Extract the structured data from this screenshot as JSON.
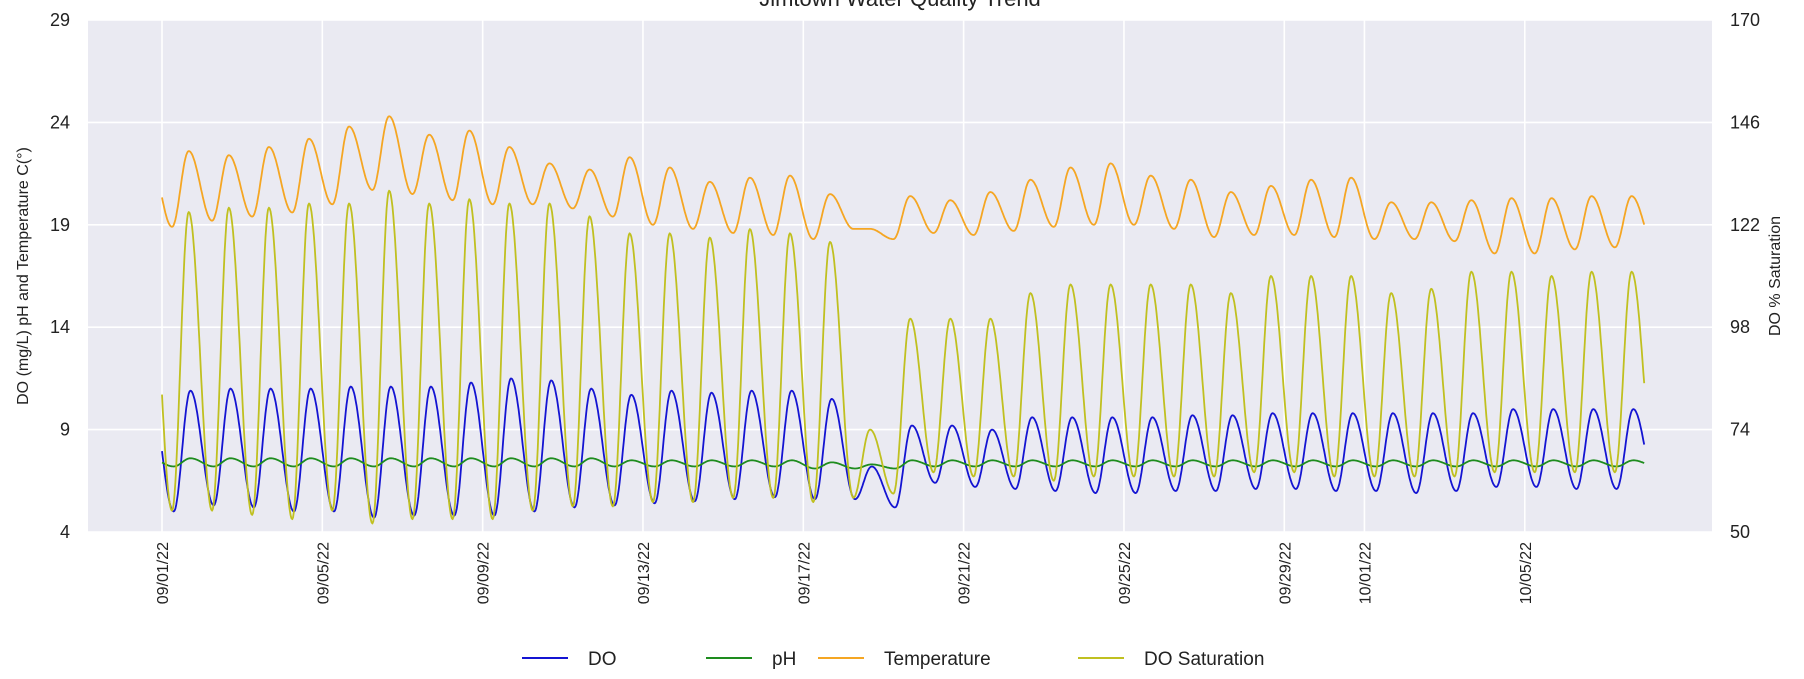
{
  "chart_data": {
    "type": "line",
    "title": "Jimtown Water Quality Trend",
    "ylabel_left": "DO (mg/L) pH and Temperature C(°)",
    "ylabel_right": "DO % Saturation",
    "ylim_left": [
      4,
      29
    ],
    "ylim_right": [
      50,
      170
    ],
    "yticks_left": [
      4,
      9,
      14,
      19,
      24,
      29
    ],
    "yticks_right": [
      50,
      74,
      98,
      122,
      146,
      170
    ],
    "x_range": [
      "2022-09-01",
      "2022-10-08"
    ],
    "xticks": [
      {
        "date": "2022-09-01",
        "label": "09/01/22"
      },
      {
        "date": "2022-09-05",
        "label": "09/05/22"
      },
      {
        "date": "2022-09-09",
        "label": "09/09/22"
      },
      {
        "date": "2022-09-13",
        "label": "09/13/22"
      },
      {
        "date": "2022-09-17",
        "label": "09/17/22"
      },
      {
        "date": "2022-09-21",
        "label": "09/21/22"
      },
      {
        "date": "2022-09-25",
        "label": "09/25/22"
      },
      {
        "date": "2022-09-29",
        "label": "09/29/22"
      },
      {
        "date": "2022-10-01",
        "label": "10/01/22"
      },
      {
        "date": "2022-10-05",
        "label": "10/05/22"
      }
    ],
    "grid": true,
    "legend_position": "bottom-center",
    "series": [
      {
        "name": "DO",
        "color": "#1414d2",
        "axis": "left",
        "daily_cycles": {
          "start_date": "2022-09-01",
          "peak_hour": 17,
          "min_hour": 7,
          "min": [
            5.0,
            5.3,
            5.2,
            5.0,
            5.0,
            4.7,
            4.8,
            4.8,
            4.8,
            5.0,
            5.2,
            5.3,
            5.4,
            5.5,
            5.6,
            5.7,
            5.6,
            5.6,
            5.2,
            6.4,
            6.2,
            6.1,
            6.0,
            5.9,
            5.9,
            6.0,
            6.0,
            6.1,
            6.1,
            6.0,
            6.0,
            5.9,
            6.0,
            6.2,
            6.2,
            6.1,
            6.1
          ],
          "max": [
            10.9,
            11.0,
            11.0,
            11.0,
            11.1,
            11.1,
            11.1,
            11.3,
            11.5,
            11.4,
            11.0,
            10.7,
            10.9,
            10.8,
            10.9,
            10.9,
            10.5,
            7.2,
            9.2,
            9.2,
            9.0,
            9.6,
            9.6,
            9.6,
            9.6,
            9.7,
            9.7,
            9.8,
            9.8,
            9.8,
            9.8,
            9.8,
            9.8,
            10.0,
            10.0,
            10.0,
            10.0
          ]
        }
      },
      {
        "name": "pH",
        "color": "#1e8c1e",
        "axis": "left",
        "daily_cycles": {
          "start_date": "2022-09-01",
          "peak_hour": 17,
          "min_hour": 7,
          "min": [
            7.2,
            7.2,
            7.2,
            7.2,
            7.2,
            7.2,
            7.2,
            7.2,
            7.2,
            7.2,
            7.2,
            7.2,
            7.2,
            7.2,
            7.2,
            7.2,
            7.1,
            7.1,
            7.1,
            7.2,
            7.2,
            7.2,
            7.2,
            7.2,
            7.2,
            7.2,
            7.2,
            7.2,
            7.2,
            7.2,
            7.2,
            7.2,
            7.2,
            7.2,
            7.2,
            7.2,
            7.2
          ],
          "max": [
            7.6,
            7.6,
            7.6,
            7.6,
            7.6,
            7.6,
            7.6,
            7.6,
            7.6,
            7.6,
            7.6,
            7.5,
            7.5,
            7.5,
            7.5,
            7.5,
            7.4,
            7.3,
            7.5,
            7.5,
            7.5,
            7.5,
            7.5,
            7.5,
            7.5,
            7.5,
            7.5,
            7.5,
            7.5,
            7.5,
            7.5,
            7.5,
            7.5,
            7.5,
            7.5,
            7.5,
            7.5
          ]
        }
      },
      {
        "name": "Temperature",
        "color": "#f5a623",
        "axis": "left",
        "daily_cycles": {
          "start_date": "2022-09-01",
          "peak_hour": 16,
          "min_hour": 6,
          "min": [
            18.9,
            19.2,
            19.4,
            19.6,
            20.0,
            20.7,
            20.5,
            20.2,
            20.0,
            20.0,
            19.8,
            19.4,
            19.0,
            18.8,
            18.6,
            18.5,
            18.3,
            18.8,
            18.3,
            18.6,
            18.5,
            18.7,
            18.9,
            19.0,
            19.0,
            18.8,
            18.4,
            18.5,
            18.5,
            18.4,
            18.3,
            18.3,
            18.2,
            17.6,
            17.6,
            17.8,
            17.9
          ],
          "max": [
            22.6,
            22.4,
            22.8,
            23.2,
            23.8,
            24.3,
            23.4,
            23.6,
            22.8,
            22.0,
            21.7,
            22.3,
            21.8,
            21.1,
            21.3,
            21.4,
            20.5,
            18.8,
            20.4,
            20.2,
            20.6,
            21.2,
            21.8,
            22.0,
            21.4,
            21.2,
            20.6,
            20.9,
            21.2,
            21.3,
            20.1,
            20.1,
            20.2,
            20.3,
            20.3,
            20.4,
            20.4
          ]
        }
      },
      {
        "name": "DO Saturation",
        "color": "#c0c020",
        "axis": "right",
        "daily_cycles": {
          "start_date": "2022-09-01",
          "peak_hour": 16,
          "min_hour": 6,
          "min": [
            55,
            55,
            54,
            53,
            55,
            52,
            53,
            53,
            53,
            55,
            56,
            56,
            57,
            57,
            58,
            58,
            57,
            58,
            59,
            64,
            63,
            63,
            62,
            63,
            63,
            63,
            63,
            64,
            64,
            63,
            63,
            63,
            63,
            64,
            64,
            64,
            64
          ],
          "max": [
            125,
            126,
            126,
            127,
            127,
            130,
            127,
            128,
            127,
            127,
            124,
            120,
            120,
            119,
            121,
            120,
            118,
            74,
            100,
            100,
            100,
            106,
            108,
            108,
            108,
            108,
            106,
            110,
            110,
            110,
            106,
            107,
            111,
            111,
            110,
            111,
            111
          ]
        }
      }
    ]
  }
}
